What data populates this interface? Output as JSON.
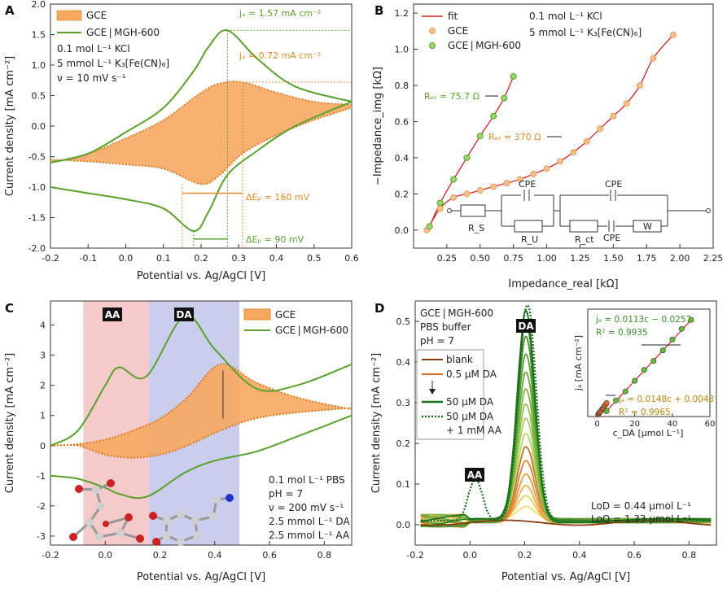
{
  "colors": {
    "gce": "#f0a04b",
    "gce_fill": "#f7a860",
    "mgh": "#5aa02c",
    "fit": "#d42020",
    "aa_band": "#f2b8b8",
    "da_band": "#b8bde6"
  },
  "chart_data": [
    {
      "panel": "A",
      "type": "line",
      "xlabel": "Potential vs. Ag/AgCl [V]",
      "ylabel": "Current density [mA cm⁻²]",
      "xlim": [
        -0.2,
        0.6
      ],
      "ylim": [
        -2.0,
        2.0
      ],
      "xticks": [
        "-0.2",
        "-0.1",
        "0.0",
        "0.1",
        "0.2",
        "0.3",
        "0.4",
        "0.5",
        "0.6"
      ],
      "yticks": [
        "-2.0",
        "-1.5",
        "-1.0",
        "-0.5",
        "0.0",
        "0.5",
        "1.0",
        "1.5",
        "2.0"
      ],
      "legend": [
        "GCE",
        "GCE | MGH-600"
      ],
      "conditions": [
        "0.1 mol L⁻¹ KCl",
        "5 mmol L⁻¹ K₃[Fe(CN)₆]",
        "ν = 10 mV s⁻¹"
      ],
      "annotations": [
        "jₐ = 1.57 mA cm⁻²",
        "jₐ = 0.72 mA cm⁻²",
        "ΔEₚ = 160 mV",
        "ΔEₚ = 90 mV"
      ],
      "series": [
        {
          "name": "GCE",
          "x": [
            -0.2,
            -0.1,
            0.0,
            0.1,
            0.2,
            0.25,
            0.31,
            0.4,
            0.5,
            0.6
          ],
          "forward": [
            -0.6,
            -0.45,
            -0.2,
            0.1,
            0.55,
            0.7,
            0.72,
            0.55,
            0.4,
            0.35
          ],
          "reverse": [
            -0.55,
            -0.58,
            -0.63,
            -0.7,
            -0.95,
            -0.8,
            -0.45,
            -0.15,
            0.1,
            0.3
          ]
        },
        {
          "name": "GCE | MGH-600",
          "x": [
            -0.2,
            -0.1,
            0.0,
            0.1,
            0.18,
            0.22,
            0.27,
            0.35,
            0.45,
            0.6
          ],
          "forward": [
            -0.6,
            -0.45,
            -0.1,
            0.3,
            0.9,
            1.3,
            1.57,
            1.1,
            0.65,
            0.4
          ],
          "reverse": [
            -1.0,
            -1.1,
            -1.2,
            -1.35,
            -1.72,
            -1.4,
            -0.8,
            -0.4,
            0.0,
            0.4
          ]
        }
      ]
    },
    {
      "panel": "B",
      "type": "scatter",
      "xlabel": "Impedance_real [kΩ]",
      "ylabel": "−Impedance_img [kΩ]",
      "xlim": [
        0.0,
        2.25
      ],
      "ylim": [
        -0.1,
        1.25
      ],
      "xticks": [
        "0.25",
        "0.50",
        "0.75",
        "1.00",
        "1.25",
        "1.50",
        "1.75",
        "2.00",
        "2.25"
      ],
      "yticks": [
        "0.0",
        "0.2",
        "0.4",
        "0.6",
        "0.8",
        "1.0",
        "1.2"
      ],
      "legend": [
        "fit",
        "GCE",
        "GCE | MGH-600"
      ],
      "conditions": [
        "0.1 mol L⁻¹ KCl",
        "5 mmol L⁻¹ K₃[Fe(CN)₆]"
      ],
      "annotations": [
        "Rₑₜ = 75.7 Ω",
        "Rₑₜ = 370 Ω"
      ],
      "circuit_labels": [
        "CPE",
        "CPE",
        "CPE",
        "R_S",
        "R_U",
        "R_ct",
        "W"
      ],
      "series": [
        {
          "name": "GCE",
          "x": [
            0.1,
            0.2,
            0.3,
            0.4,
            0.5,
            0.6,
            0.7,
            0.8,
            0.9,
            1.0,
            1.1,
            1.2,
            1.3,
            1.4,
            1.5,
            1.6,
            1.7,
            1.8,
            1.95
          ],
          "y": [
            0.0,
            0.12,
            0.18,
            0.2,
            0.22,
            0.24,
            0.26,
            0.28,
            0.31,
            0.34,
            0.38,
            0.43,
            0.49,
            0.56,
            0.63,
            0.7,
            0.8,
            0.95,
            1.08
          ]
        },
        {
          "name": "GCE | MGH-600",
          "x": [
            0.12,
            0.2,
            0.3,
            0.4,
            0.5,
            0.6,
            0.68,
            0.75
          ],
          "y": [
            0.02,
            0.15,
            0.28,
            0.4,
            0.52,
            0.63,
            0.73,
            0.85
          ]
        }
      ]
    },
    {
      "panel": "C",
      "type": "line",
      "xlabel": "Potential vs. Ag/AgCl [V]",
      "ylabel": "Current density [mA cm⁻²]",
      "xlim": [
        -0.2,
        0.9
      ],
      "ylim": [
        -3.3,
        4.8
      ],
      "xticks": [
        "-0.2",
        "0.0",
        "0.2",
        "0.4",
        "0.6",
        "0.8"
      ],
      "yticks": [
        "-3",
        "-2",
        "-1",
        "0",
        "1",
        "2",
        "3",
        "4"
      ],
      "bands": [
        "AA",
        "DA"
      ],
      "legend": [
        "GCE",
        "GCE | MGH-600"
      ],
      "conditions": [
        "0.1 mol L⁻¹ PBS",
        "pH = 7",
        "ν = 200 mV s⁻¹",
        "2.5 mmol L⁻¹ DA",
        "2.5 mmol L⁻¹ AA"
      ],
      "series": [
        {
          "name": "GCE",
          "x": [
            -0.2,
            -0.1,
            0.0,
            0.1,
            0.2,
            0.3,
            0.42,
            0.55,
            0.7,
            0.9
          ],
          "forward": [
            0.0,
            0.05,
            0.2,
            0.5,
            0.9,
            1.6,
            2.7,
            2.1,
            1.6,
            1.2
          ],
          "reverse": [
            0.0,
            0.0,
            -0.3,
            -0.4,
            -0.3,
            0.0,
            0.5,
            0.9,
            1.1,
            1.25
          ]
        },
        {
          "name": "GCE | MGH-600",
          "x": [
            -0.2,
            -0.1,
            0.0,
            0.05,
            0.15,
            0.29,
            0.4,
            0.55,
            0.7,
            0.9
          ],
          "forward": [
            0.0,
            0.5,
            2.0,
            2.6,
            2.3,
            4.3,
            3.2,
            1.9,
            2.0,
            2.7
          ],
          "reverse": [
            -1.0,
            -1.1,
            -1.4,
            -1.6,
            -1.7,
            -0.9,
            -0.5,
            -0.2,
            0.3,
            1.0
          ]
        }
      ]
    },
    {
      "panel": "D",
      "type": "line",
      "xlabel": "Potential vs. Ag/AgCl [V]",
      "ylabel": "Current density [mA cm⁻²]",
      "xlim": [
        -0.2,
        0.9
      ],
      "ylim": [
        -0.05,
        0.55
      ],
      "xticks": [
        "-0.2",
        "0.0",
        "0.2",
        "0.4",
        "0.6",
        "0.8"
      ],
      "yticks": [
        "0.0",
        "0.1",
        "0.2",
        "0.3",
        "0.4",
        "0.5"
      ],
      "title_lines": [
        "GCE | MGH-600",
        "PBS buffer",
        "pH = 7"
      ],
      "legend": [
        "blank",
        "0.5 µM DA",
        "50 µM DA",
        "50 µM DA",
        "+ 1 mM AA"
      ],
      "peak_labels": [
        "AA",
        "DA"
      ],
      "limits": [
        "LoD = 0.44 µmol L⁻¹",
        "LoQ = 1.33 µmol L⁻¹"
      ],
      "peak_heights": [
        0.03,
        0.06,
        0.09,
        0.12,
        0.15,
        0.18,
        0.21,
        0.25,
        0.29,
        0.33,
        0.37,
        0.41,
        0.45,
        0.49,
        0.52
      ],
      "inset": {
        "xlabel": "c_DA [µmol L⁻¹]",
        "ylabel": "jₐ [mA cm⁻²]",
        "xlim": [
          -5,
          60
        ],
        "ylim": [
          0,
          0.6
        ],
        "xticks": [
          "0",
          "20",
          "40",
          "60"
        ],
        "fit_high": "jₐ = 0.0113c − 0.0257",
        "r2_high": "R² = 0.9935",
        "fit_low": "jₐ = 0.0148c + 0.0043",
        "r2_low": "R² = 0.9965",
        "points_high": {
          "x": [
            5,
            10,
            15,
            20,
            25,
            30,
            35,
            40,
            45,
            50
          ],
          "y": [
            0.03,
            0.09,
            0.14,
            0.2,
            0.26,
            0.31,
            0.37,
            0.43,
            0.49,
            0.54
          ]
        },
        "points_low": {
          "x": [
            0.5,
            1,
            1.5,
            2,
            2.5,
            3,
            3.5,
            4,
            4.5,
            5
          ],
          "y": [
            0.01,
            0.02,
            0.025,
            0.03,
            0.04,
            0.045,
            0.05,
            0.06,
            0.065,
            0.075
          ]
        }
      }
    }
  ]
}
